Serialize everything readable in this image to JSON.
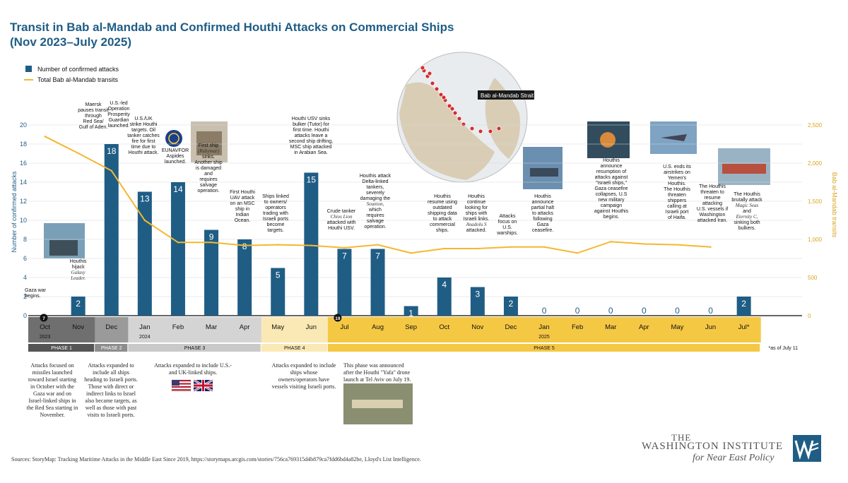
{
  "title_line1": "Transit in Bab al-Mandab and Confirmed Houthi Attacks on Commercial Ships",
  "title_line2": "(Nov 2023–July 2025)",
  "chart_data": {
    "type": "bar",
    "categories": [
      "Oct",
      "Nov",
      "Dec",
      "Jan",
      "Feb",
      "Mar",
      "Apr",
      "May",
      "Jun",
      "Jul",
      "Aug",
      "Sep",
      "Oct",
      "Nov",
      "Dec",
      "Jan",
      "Feb",
      "Mar",
      "Apr",
      "May",
      "Jun",
      "Jul*"
    ],
    "year_labels": [
      {
        "index": 0,
        "label": "2023"
      },
      {
        "index": 3,
        "label": "2024"
      },
      {
        "index": 15,
        "label": "2025"
      }
    ],
    "series": [
      {
        "name": "Number of confirmed attacks",
        "type": "bar",
        "axis": "left",
        "color": "#1f5d85",
        "values": [
          null,
          2,
          18,
          13,
          14,
          9,
          8,
          5,
          15,
          7,
          7,
          1,
          4,
          3,
          2,
          0,
          0,
          0,
          0,
          0,
          0,
          2
        ]
      },
      {
        "name": "Total Bab al-Mandab transits",
        "type": "line",
        "axis": "right",
        "color": "#f5b731",
        "values": [
          2350,
          2130,
          1900,
          1250,
          960,
          960,
          920,
          930,
          920,
          890,
          930,
          820,
          880,
          880,
          900,
          900,
          820,
          970,
          940,
          930,
          900,
          null
        ]
      }
    ],
    "ylabel": "Number of confirmed attacks",
    "ylabel_right": "Bab al-Mandab transits",
    "ylim": [
      0,
      20
    ],
    "ylim_right": [
      0,
      2500
    ],
    "yticks": [
      0,
      2,
      4,
      6,
      8,
      10,
      12,
      14,
      16,
      18,
      20
    ],
    "yticks_right": [
      "0",
      "500",
      "1,000",
      "1,500",
      "2,000",
      "2,500"
    ],
    "legend_position": "top-left",
    "markers": [
      {
        "index": 0,
        "label": "7"
      },
      {
        "index": 9,
        "label": "19"
      }
    ],
    "annotations": [
      {
        "index": 0,
        "lines": [
          "Gaza war",
          "begins."
        ],
        "italic": []
      },
      {
        "index": 1,
        "lines": [
          "Houthis",
          "hijack",
          "Galaxy",
          "Leader."
        ],
        "italic": [
          2,
          3
        ]
      },
      {
        "index": 1,
        "lines": [
          "Maersk",
          "pauses transit",
          "through",
          "Red Sea/",
          "Gulf of Aden."
        ],
        "italic": []
      },
      {
        "index": 2,
        "lines": [
          "U.S.-led",
          "Operation",
          "Prosperity",
          "Guardian",
          "launched."
        ],
        "italic": []
      },
      {
        "index": 3,
        "lines": [
          "U.S./UK",
          "strike Houthi",
          "targets. Oil",
          "tanker catches",
          "fire for first",
          "time due to",
          "Houthi attack."
        ],
        "italic": []
      },
      {
        "index": 4,
        "lines": [
          "EUNAVFOR",
          "Aspides",
          "launched."
        ],
        "italic": []
      },
      {
        "index": 5,
        "lines": [
          "First ship",
          "(Rubymar)",
          "sinks.",
          "Another ship",
          "is damaged",
          "and",
          "requires",
          "salvage",
          "operation."
        ],
        "italic": [
          1
        ]
      },
      {
        "index": 6,
        "lines": [
          "First Houthi",
          "UAV attack",
          "on an MSC",
          "ship in",
          "Indian",
          "Ocean."
        ],
        "italic": []
      },
      {
        "index": 7,
        "lines": [
          "Ships linked",
          "to owners/",
          "operators",
          "trading with",
          "Israeli ports",
          "become",
          "targets."
        ],
        "italic": []
      },
      {
        "index": 8,
        "lines": [
          "Houthi USV sinks",
          "bulker (Tutor) for",
          "first time. Houthi",
          "attacks leave a",
          "second ship drifting,",
          "MSC ship attacked",
          "in Arabian Sea."
        ],
        "italic": []
      },
      {
        "index": 9,
        "lines": [
          "Crude tanker",
          "Chios Lion",
          "attacked with",
          "Houthi USV."
        ],
        "italic": [
          1
        ]
      },
      {
        "index": 10,
        "lines": [
          "Houthis attack",
          "Delta-linked",
          "tankers,",
          "severely",
          "damaging the",
          "Sounion,",
          "which",
          "requires",
          "salvage",
          "operation."
        ],
        "italic": [
          5
        ]
      },
      {
        "index": 12,
        "lines": [
          "Houthis",
          "resume using",
          "outdated",
          "shipping data",
          "to attack",
          "commercial",
          "ships."
        ],
        "italic": []
      },
      {
        "index": 13,
        "lines": [
          "Houthis",
          "continue",
          "looking for",
          "ships with",
          "Israeli links.",
          "Anadolu S",
          "attacked."
        ],
        "italic": [
          5
        ]
      },
      {
        "index": 14,
        "lines": [
          "Attacks",
          "focus on",
          "U.S.",
          "warships."
        ],
        "italic": []
      },
      {
        "index": 15,
        "lines": [
          "Houthis",
          "announce",
          "partial halt",
          "to attacks",
          "following",
          "Gaza",
          "ceasefire."
        ],
        "italic": []
      },
      {
        "index": 17,
        "lines": [
          "Houthis",
          "announce",
          "resumption of",
          "attacks against",
          "\"Israeli ships,\"",
          "Gaza ceasefire",
          "collapses, U.S",
          "new military",
          "campaign",
          "against Houthis",
          "begins."
        ],
        "italic": []
      },
      {
        "index": 19,
        "lines": [
          "U.S. ends its",
          "airstrikes on",
          "Yemen's",
          "Houthis.",
          "The Houthis",
          "threaten",
          "shippers",
          "calling at",
          "Israeli port",
          "of Haifa."
        ],
        "italic": []
      },
      {
        "index": 20,
        "lines": [
          "The Houthis",
          "threaten to",
          "resume",
          "attacking",
          "U.S. vessels if",
          "Washington",
          "attacked Iran."
        ],
        "italic": []
      },
      {
        "index": 21,
        "lines": [
          "The Houthis",
          "brutally attack",
          "Magic Seas",
          "and",
          "Eternity C,",
          "sinking both",
          "bulkers."
        ],
        "italic": [
          2,
          4
        ]
      }
    ],
    "phases": [
      {
        "label": "PHASE 1",
        "from": 0,
        "to": 1,
        "color": "#555555"
      },
      {
        "label": "PHASE 2",
        "from": 2,
        "to": 2,
        "color": "#8c8c8c"
      },
      {
        "label": "PHASE 3",
        "from": 3,
        "to": 6,
        "color": "#c9c9c9"
      },
      {
        "label": "PHASE 4",
        "from": 7,
        "to": 8,
        "color": "#fbe9b5"
      },
      {
        "label": "PHASE 5",
        "from": 9,
        "to": 21,
        "color": "#f5c844"
      }
    ],
    "footnote": "*as of July 11",
    "map_label": "Bab al-Mandab Strait"
  },
  "phase_descriptions": [
    {
      "text": "Attacks focused on missiles launched toward Israel starting in October with the Gaza war and on Israel-linked ships in the Red Sea starting in November."
    },
    {
      "text": "Attacks expanded to include all ships heading to Israeli ports. Those with direct or indirect links to Israel also became targets, as well as those with past visits to Israeli ports."
    },
    {
      "text": "Attacks expanded to include U.S.- and UK-linked ships."
    },
    {
      "text": "Attacks expanded to include ships whose owners/operators have vessels visiting Israeli ports."
    },
    {
      "text": "This phase was announced after the Houthi \"Yafa\" drone launch at Tel Aviv on July 19."
    }
  ],
  "sources": "Sources: StoryMap: Tracking Maritime Attacks in the Middle East Since 2019, https://storymaps.arcgis.com/stories/756ca769315d4b879ca7fdd6bd4a82be, Lloyd's List Intelligence.",
  "logo": {
    "line1": "THE",
    "line2": "WASHINGTON INSTITUTE",
    "line3": "for Near East Policy"
  },
  "colors": {
    "bar": "#1f5d85",
    "line": "#f5b731",
    "title": "#1f5d85"
  }
}
